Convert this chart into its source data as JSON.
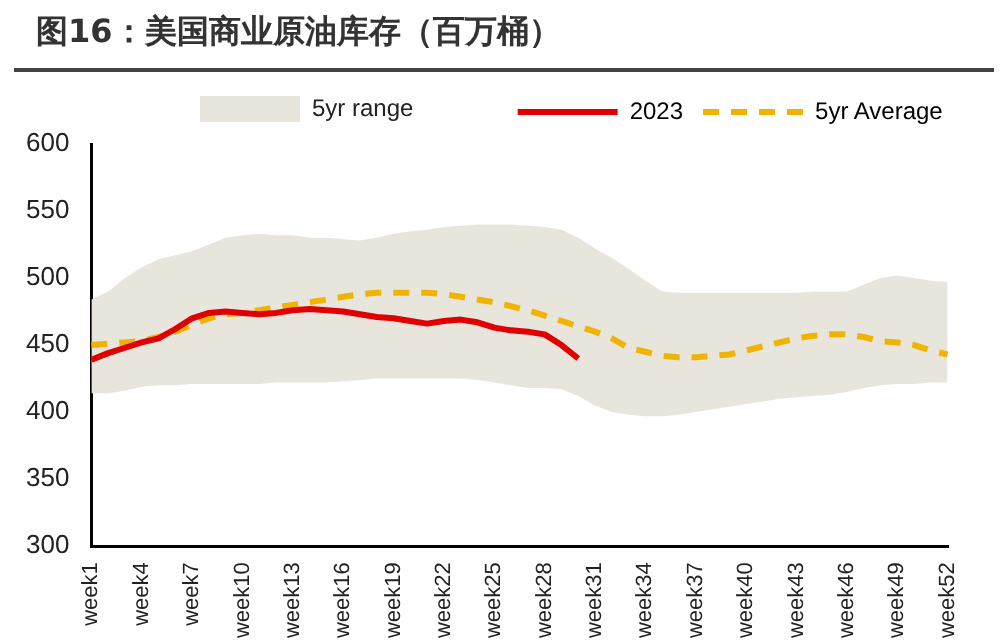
{
  "chart_data": {
    "type": "line",
    "title": "图16：美国商业原油库存（百万桶）",
    "categories": [
      "week1",
      null,
      null,
      "week4",
      null,
      null,
      "week7",
      null,
      null,
      "week10",
      null,
      null,
      "week13",
      null,
      null,
      "week16",
      null,
      null,
      "week19",
      null,
      null,
      "week22",
      null,
      null,
      "week25",
      null,
      null,
      "week28",
      null,
      null,
      "week31",
      null,
      null,
      "week34",
      null,
      null,
      "week37",
      null,
      null,
      "week40",
      null,
      null,
      "week43",
      null,
      null,
      "week46",
      null,
      null,
      "week49",
      null,
      null,
      "week52"
    ],
    "series": [
      {
        "name": "2023",
        "type": "line",
        "color": "#e00000",
        "values": [
          439,
          444,
          448,
          452,
          455,
          462,
          470,
          474,
          475,
          474,
          473,
          474,
          476,
          477,
          476,
          475,
          473,
          471,
          470,
          468,
          466,
          468,
          469,
          467,
          463,
          461,
          460,
          458,
          450,
          440,
          null,
          null,
          null,
          null,
          null,
          null,
          null,
          null,
          null,
          null,
          null,
          null,
          null,
          null,
          null,
          null,
          null,
          null,
          null,
          null,
          null,
          null
        ]
      },
      {
        "name": "5yr Average",
        "type": "line",
        "line_style": "dashed",
        "color": "#f0b400",
        "values": [
          450,
          451,
          452,
          453,
          456,
          460,
          465,
          470,
          473,
          474,
          476,
          478,
          480,
          482,
          484,
          486,
          488,
          489,
          489,
          489,
          489,
          488,
          486,
          484,
          482,
          479,
          476,
          472,
          468,
          464,
          460,
          455,
          448,
          445,
          442,
          441,
          441,
          442,
          443,
          446,
          449,
          452,
          455,
          457,
          458,
          458,
          456,
          453,
          452,
          450,
          446,
          443
        ],
        "upper": [
          484,
          490,
          500,
          508,
          514,
          517,
          520,
          525,
          530,
          532,
          533,
          532,
          532,
          530,
          530,
          529,
          528,
          530,
          533,
          535,
          536,
          538,
          539,
          540,
          540,
          540,
          539,
          538,
          536,
          530,
          522,
          515,
          507,
          498,
          490,
          489,
          489,
          489,
          489,
          489,
          489,
          489,
          489,
          490,
          490,
          490,
          495,
          500,
          502,
          500,
          498,
          497
        ],
        "lower": [
          414,
          414,
          416,
          419,
          420,
          420,
          421,
          421,
          421,
          421,
          421,
          422,
          422,
          422,
          422,
          423,
          424,
          425,
          425,
          425,
          425,
          425,
          425,
          424,
          422,
          420,
          418,
          418,
          417,
          412,
          405,
          400,
          398,
          397,
          397,
          398,
          400,
          402,
          404,
          406,
          408,
          410,
          411,
          412,
          413,
          415,
          418,
          420,
          421,
          421,
          422,
          422
        ]
      }
    ],
    "annotations": [
      "5yr range"
    ],
    "ylim": [
      300,
      600
    ],
    "yticks": [
      300,
      350,
      400,
      450,
      500,
      550,
      600
    ],
    "grid": false,
    "legend": "top",
    "marker": "none"
  }
}
